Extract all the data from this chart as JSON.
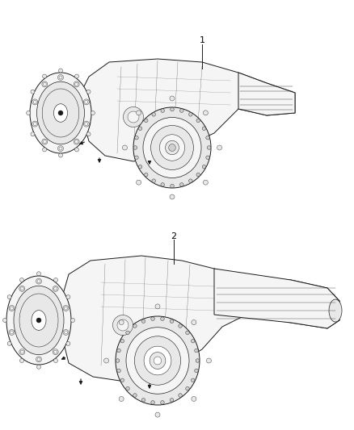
{
  "background_color": "#ffffff",
  "figure_width": 4.38,
  "figure_height": 5.33,
  "dpi": 100,
  "label1": "1",
  "label2": "2",
  "line_color": "#1a1a1a",
  "fill_white": "#ffffff",
  "fill_light": "#f5f5f5",
  "fill_mid": "#e8e8e8",
  "fill_dark": "#d0d0d0"
}
